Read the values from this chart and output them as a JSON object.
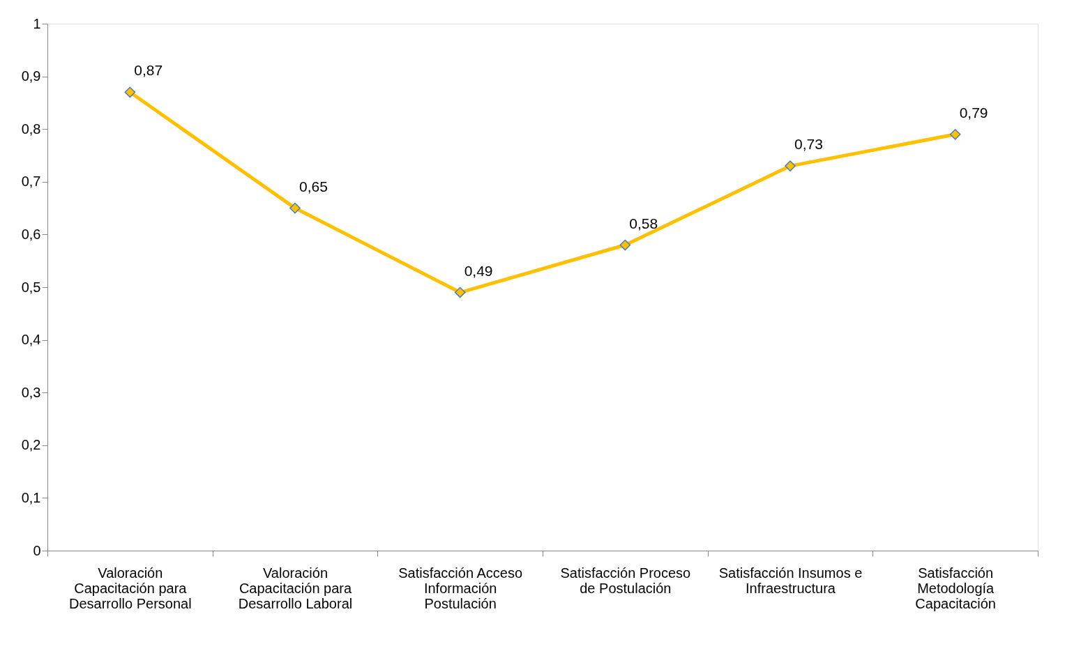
{
  "chart_data": {
    "type": "line",
    "categories": [
      "Valoración Capacitación para Desarrollo Personal",
      "Valoración Capacitación para Desarrollo Laboral",
      "Satisfacción  Acceso Información Postulación",
      "Satisfacción Proceso de Postulación",
      "Satisfacción Insumos e Infraestructura",
      "Satisfacción Metodología Capacitación"
    ],
    "series": [
      {
        "color": "#ffc000",
        "values": [
          0.87,
          0.65,
          0.49,
          0.58,
          0.73,
          0.79
        ],
        "value_labels": [
          "0,87",
          "0,65",
          "0,49",
          "0,58",
          "0,73",
          "0,79"
        ]
      }
    ],
    "ylim": [
      0,
      1
    ],
    "yticks": [
      {
        "value": 0,
        "label": "0"
      },
      {
        "value": 0.1,
        "label": "0,1"
      },
      {
        "value": 0.2,
        "label": "0,2"
      },
      {
        "value": 0.3,
        "label": "0,3"
      },
      {
        "value": 0.4,
        "label": "0,4"
      },
      {
        "value": 0.5,
        "label": "0,5"
      },
      {
        "value": 0.6,
        "label": "0,6"
      },
      {
        "value": 0.7,
        "label": "0,7"
      },
      {
        "value": 0.8,
        "label": "0,8"
      },
      {
        "value": 0.9,
        "label": "0,9"
      },
      {
        "value": 1,
        "label": "1"
      }
    ],
    "marker": "diamond",
    "line_style": "solid",
    "grid": false
  }
}
